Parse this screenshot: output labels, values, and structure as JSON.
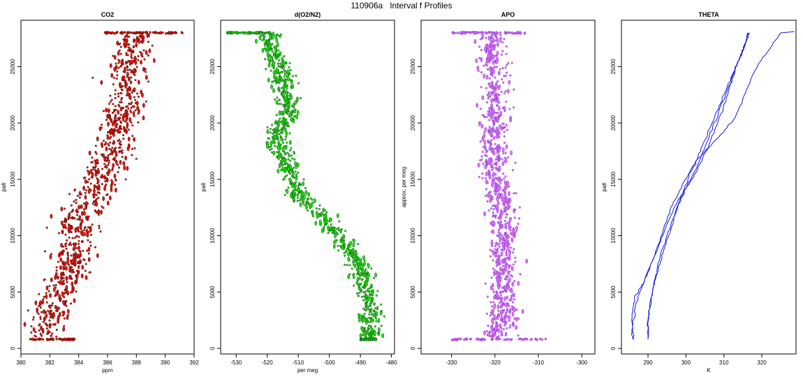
{
  "page": {
    "title": "110906a   Interval f Profiles"
  },
  "chart_data": [
    {
      "id": "co2",
      "type": "scatter",
      "title": "CO2",
      "xlabel": "ppm",
      "ylabel": "palt",
      "xlim": [
        380,
        392
      ],
      "ylim": [
        0,
        28000
      ],
      "xticks": [
        380,
        382,
        384,
        386,
        388,
        390,
        392
      ],
      "yticks": [
        0,
        5000,
        10000,
        15000,
        20000,
        25000
      ],
      "color": "#e8160c",
      "edge_color": "#3a0000",
      "profile": [
        [
          381.6,
          800
        ],
        [
          381.9,
          2000
        ],
        [
          382.2,
          3500
        ],
        [
          382.6,
          5000
        ],
        [
          383.2,
          6500
        ],
        [
          383.6,
          8000
        ],
        [
          384.0,
          9500
        ],
        [
          383.9,
          11000
        ],
        [
          384.3,
          12500
        ],
        [
          385.0,
          13500
        ],
        [
          385.6,
          15000
        ],
        [
          385.9,
          16500
        ],
        [
          386.4,
          18000
        ],
        [
          386.8,
          19500
        ],
        [
          387.0,
          21000
        ],
        [
          387.3,
          22500
        ],
        [
          387.1,
          24000
        ],
        [
          387.8,
          25500
        ],
        [
          387.9,
          27000
        ]
      ],
      "spread": 1.4,
      "cap": {
        "y": 28000,
        "xmin": 385.8,
        "xmax": 391.2
      },
      "base": {
        "y": 800,
        "xmin": 380.6,
        "xmax": 383.8
      }
    },
    {
      "id": "do2n2",
      "type": "scatter",
      "title": "d(O2/N2)",
      "xlabel": "per meg",
      "ylabel": "palt",
      "xlim": [
        -535,
        -479
      ],
      "ylim": [
        0,
        28000
      ],
      "xticks": [
        -530,
        -520,
        -510,
        -500,
        -490,
        -480
      ],
      "yticks": [
        0,
        5000,
        10000,
        15000,
        20000,
        25000
      ],
      "color": "#1ee80f",
      "edge_color": "#0a3a0a",
      "profile": [
        [
          -519,
          27000
        ],
        [
          -517,
          25500
        ],
        [
          -515,
          24000
        ],
        [
          -514,
          22500
        ],
        [
          -513,
          21000
        ],
        [
          -516,
          19500
        ],
        [
          -517,
          18000
        ],
        [
          -514,
          16500
        ],
        [
          -512,
          15000
        ],
        [
          -510,
          13500
        ],
        [
          -505,
          12500
        ],
        [
          -500,
          11000
        ],
        [
          -496,
          9500
        ],
        [
          -492,
          8000
        ],
        [
          -489,
          6500
        ],
        [
          -488,
          5000
        ],
        [
          -487,
          3500
        ],
        [
          -487,
          2000
        ],
        [
          -487,
          800
        ]
      ],
      "spread": 3.6,
      "cap": {
        "y": 28000,
        "xmin": -533,
        "xmax": -519
      },
      "base": {
        "y": 800,
        "xmin": -490,
        "xmax": -485
      }
    },
    {
      "id": "apo",
      "type": "scatter",
      "title": "APO",
      "xlabel": "",
      "ylabel": "approx. per meg",
      "xlim": [
        -337,
        -297
      ],
      "ylim": [
        0,
        28000
      ],
      "xticks": [
        -330,
        -320,
        -310,
        -300
      ],
      "yticks": [
        0,
        5000,
        10000,
        15000,
        20000,
        25000
      ],
      "color": "#e07ae8",
      "edge_color": "#7a1ee0",
      "profile": [
        [
          -321,
          27000
        ],
        [
          -320,
          24000
        ],
        [
          -320,
          21000
        ],
        [
          -320,
          18000
        ],
        [
          -320,
          15000
        ],
        [
          -318,
          12000
        ],
        [
          -318,
          9000
        ],
        [
          -318,
          6000
        ],
        [
          -318,
          3000
        ],
        [
          -319,
          800
        ]
      ],
      "spread": 3.4,
      "cap": {
        "y": 28000,
        "xmin": -330,
        "xmax": -313
      },
      "base": {
        "y": 800,
        "xmin": -330,
        "xmax": -308
      }
    },
    {
      "id": "theta",
      "type": "line",
      "title": "THETA",
      "xlabel": "K",
      "ylabel": "palt",
      "xlim": [
        283,
        329
      ],
      "ylim": [
        0,
        28000
      ],
      "xticks": [
        290,
        300,
        310,
        320
      ],
      "yticks": [
        0,
        5000,
        10000,
        15000,
        20000,
        25000
      ],
      "color": "#1418e0",
      "series": [
        {
          "values": [
            [
              286.0,
              800
            ],
            [
              285.7,
              2500
            ],
            [
              286.4,
              4500
            ],
            [
              289.0,
              6000
            ],
            [
              291.5,
              8000
            ],
            [
              294.0,
              10500
            ],
            [
              296.0,
              12500
            ],
            [
              299.0,
              14500
            ],
            [
              302.5,
              16500
            ],
            [
              305.0,
              18500
            ],
            [
              307.5,
              20500
            ],
            [
              310.0,
              22500
            ],
            [
              312.5,
              24500
            ],
            [
              314.5,
              26000
            ],
            [
              316.5,
              28000
            ]
          ]
        },
        {
          "values": [
            [
              286.2,
              800
            ],
            [
              286.0,
              2200
            ],
            [
              286.8,
              4000
            ],
            [
              289.2,
              6200
            ],
            [
              292.0,
              8400
            ],
            [
              294.5,
              10600
            ],
            [
              297.0,
              12600
            ],
            [
              300.0,
              14200
            ],
            [
              303.0,
              16200
            ],
            [
              306.0,
              18600
            ],
            [
              308.5,
              20800
            ],
            [
              311.0,
              23000
            ],
            [
              313.5,
              25200
            ],
            [
              315.5,
              26800
            ],
            [
              316.2,
              28000
            ]
          ]
        },
        {
          "values": [
            [
              290.0,
              800
            ],
            [
              290.2,
              3000
            ],
            [
              291.5,
              5500
            ],
            [
              293.0,
              7800
            ],
            [
              295.0,
              10000
            ],
            [
              297.5,
              12400
            ],
            [
              300.0,
              14200
            ],
            [
              303.0,
              15800
            ],
            [
              306.0,
              18000
            ],
            [
              308.5,
              20200
            ],
            [
              311.0,
              22500
            ],
            [
              313.0,
              24800
            ],
            [
              315.0,
              26500
            ],
            [
              316.8,
              28000
            ]
          ]
        },
        {
          "values": [
            [
              290.0,
              800
            ],
            [
              290.0,
              2500
            ],
            [
              290.8,
              4500
            ],
            [
              292.0,
              6500
            ],
            [
              294.0,
              8500
            ],
            [
              296.0,
              10500
            ],
            [
              298.0,
              12800
            ],
            [
              300.5,
              15000
            ],
            [
              303.0,
              16800
            ],
            [
              308.5,
              18700
            ],
            [
              313.0,
              20500
            ],
            [
              316.0,
              23000
            ],
            [
              319.0,
              25200
            ],
            [
              322.5,
              26800
            ],
            [
              325.0,
              28000
            ],
            [
              328.5,
              28100
            ]
          ]
        }
      ]
    }
  ]
}
